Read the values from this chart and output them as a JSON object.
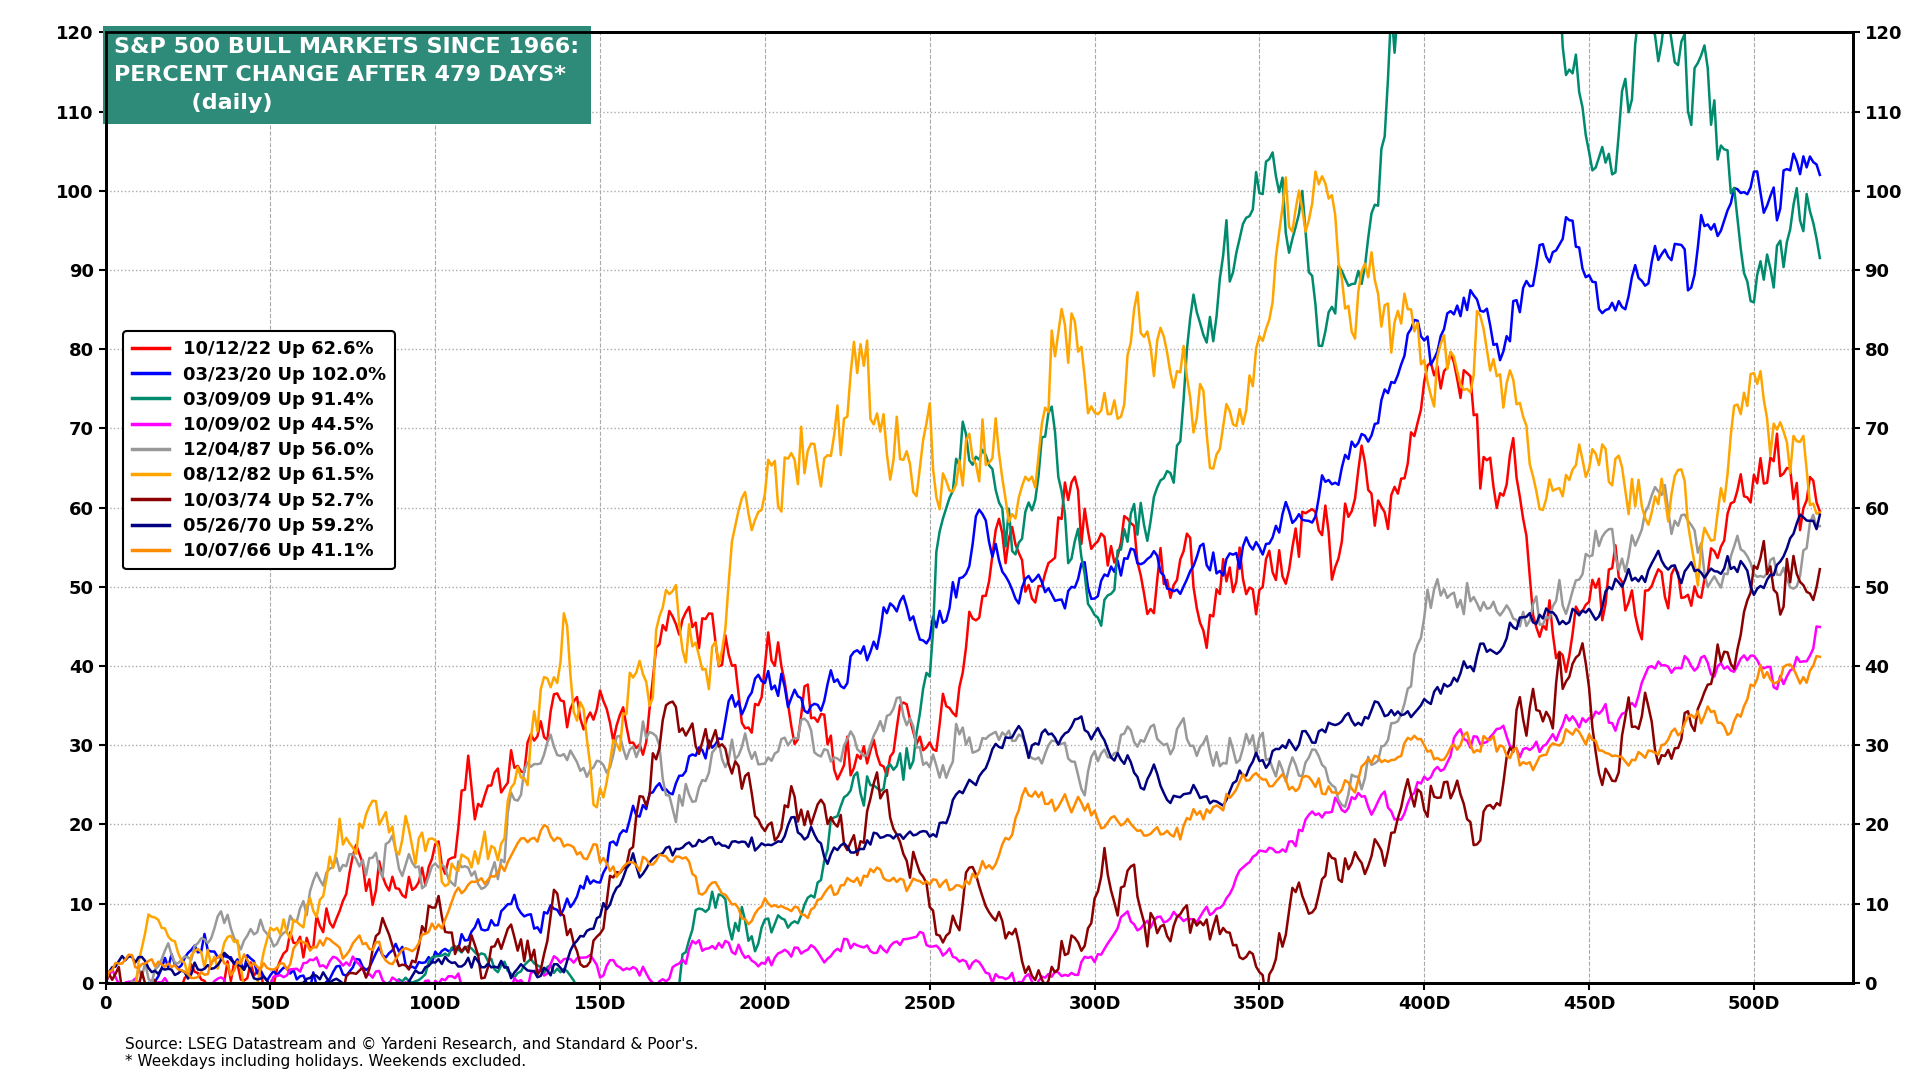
{
  "title_line1": "S&P 500 BULL MARKETS SINCE 1966:",
  "title_line2": "PERCENT CHANGE AFTER 479 DAYS*",
  "title_line3": "(daily)",
  "title_bg_color": "#2E8B7A",
  "title_text_color": "#FFFFFF",
  "source_text": "Source: LSEG Datastream and © Yardeni Research, and Standard & Poor's.\n* Weekdays including holidays. Weekends excluded.",
  "xlim": [
    0,
    530
  ],
  "ylim": [
    0,
    120
  ],
  "x_ticks": [
    0,
    50,
    100,
    150,
    200,
    250,
    300,
    350,
    400,
    450,
    500
  ],
  "x_tick_labels": [
    "0",
    "50D",
    "100D",
    "150D",
    "200D",
    "250D",
    "300D",
    "350D",
    "400D",
    "450D",
    "500D"
  ],
  "y_ticks": [
    0,
    10,
    20,
    30,
    40,
    50,
    60,
    70,
    80,
    90,
    100,
    110,
    120
  ],
  "bg_color": "#FFFFFF",
  "grid_color": "#AAAAAA",
  "legend_fontsize": 13,
  "tick_fontsize": 13,
  "source_fontsize": 11,
  "series": [
    {
      "label": "10/12/22 Up 62.6%",
      "color": "#FF0000",
      "final": 62.6,
      "vol": 0.01,
      "seed": 11
    },
    {
      "label": "03/23/20 Up 102.0%",
      "color": "#0000FF",
      "final": 102.0,
      "vol": 0.014,
      "seed": 22
    },
    {
      "label": "03/09/09 Up 91.4%",
      "color": "#008B6E",
      "final": 91.4,
      "vol": 0.013,
      "seed": 33
    },
    {
      "label": "10/09/02 Up 44.5%",
      "color": "#FF00FF",
      "final": 44.5,
      "vol": 0.01,
      "seed": 44
    },
    {
      "label": "12/04/87 Up 56.0%",
      "color": "#999999",
      "final": 56.0,
      "vol": 0.01,
      "seed": 55
    },
    {
      "label": "08/12/82 Up 61.5%",
      "color": "#FFA500",
      "final": 61.5,
      "vol": 0.012,
      "seed": 66
    },
    {
      "label": "10/03/74 Up 52.7%",
      "color": "#8B0000",
      "final": 52.7,
      "vol": 0.01,
      "seed": 77
    },
    {
      "label": "05/26/70 Up 59.2%",
      "color": "#000080",
      "final": 59.2,
      "vol": 0.012,
      "seed": 88
    },
    {
      "label": "10/07/66 Up 41.1%",
      "color": "#FF8C00",
      "final": 41.1,
      "vol": 0.012,
      "seed": 99
    }
  ],
  "n_days": 521
}
